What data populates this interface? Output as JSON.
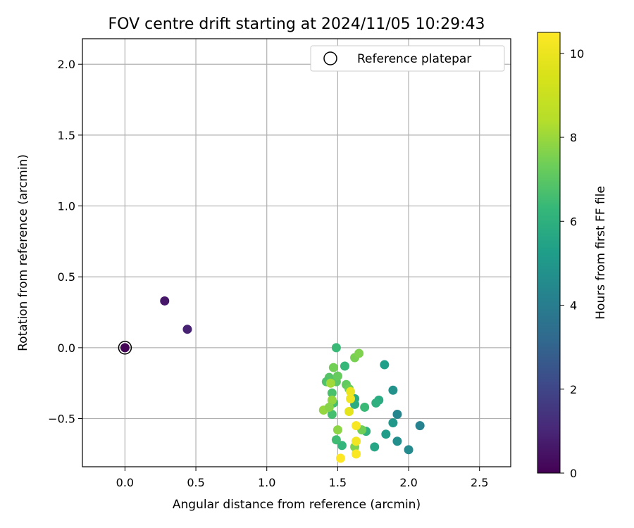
{
  "chart_data": {
    "type": "scatter",
    "title": "FOV centre drift starting at 2024/11/05 10:29:43",
    "xlabel": "Angular distance from reference (arcmin)",
    "ylabel": "Rotation from reference (arcmin)",
    "xlim": [
      -0.3,
      2.72
    ],
    "ylim": [
      -0.84,
      2.18
    ],
    "xticks": [
      0.0,
      0.5,
      1.0,
      1.5,
      2.0,
      2.5
    ],
    "xtick_labels": [
      "0.0",
      "0.5",
      "1.0",
      "1.5",
      "2.0",
      "2.5"
    ],
    "yticks": [
      -0.5,
      0.0,
      0.5,
      1.0,
      1.5,
      2.0
    ],
    "ytick_labels": [
      "−0.5",
      "0.0",
      "0.5",
      "1.0",
      "1.5",
      "2.0"
    ],
    "grid": true,
    "legend": {
      "placement": "top-right",
      "entries": [
        "Reference platepar"
      ]
    },
    "reference_point": {
      "x": 0.0,
      "y": 0.0
    },
    "colorbar": {
      "label": "Hours from first FF file",
      "colormap": "viridis",
      "range": [
        0,
        10.5
      ],
      "ticks": [
        0,
        2,
        4,
        6,
        8,
        10
      ],
      "tick_labels": [
        "0",
        "2",
        "4",
        "6",
        "8",
        "10"
      ]
    },
    "points": [
      {
        "x": 0.0,
        "y": 0.0,
        "c": 0.1
      },
      {
        "x": 0.28,
        "y": 0.33,
        "c": 0.6
      },
      {
        "x": 0.44,
        "y": 0.13,
        "c": 0.9
      },
      {
        "x": 2.08,
        "y": -0.55,
        "c": 4.2
      },
      {
        "x": 2.0,
        "y": -0.72,
        "c": 4.5
      },
      {
        "x": 1.92,
        "y": -0.47,
        "c": 4.4
      },
      {
        "x": 1.92,
        "y": -0.66,
        "c": 4.7
      },
      {
        "x": 1.89,
        "y": -0.3,
        "c": 4.8
      },
      {
        "x": 1.89,
        "y": -0.53,
        "c": 5.0
      },
      {
        "x": 1.84,
        "y": -0.61,
        "c": 5.2
      },
      {
        "x": 1.83,
        "y": -0.12,
        "c": 5.3
      },
      {
        "x": 1.76,
        "y": -0.7,
        "c": 5.6
      },
      {
        "x": 1.79,
        "y": -0.37,
        "c": 5.8
      },
      {
        "x": 1.77,
        "y": -0.39,
        "c": 6.0
      },
      {
        "x": 1.7,
        "y": -0.59,
        "c": 6.1
      },
      {
        "x": 1.62,
        "y": -0.36,
        "c": 5.7
      },
      {
        "x": 1.62,
        "y": -0.4,
        "c": 5.9
      },
      {
        "x": 1.69,
        "y": -0.42,
        "c": 6.4
      },
      {
        "x": 1.55,
        "y": -0.13,
        "c": 6.3
      },
      {
        "x": 1.53,
        "y": -0.69,
        "c": 6.2
      },
      {
        "x": 1.49,
        "y": -0.65,
        "c": 6.5
      },
      {
        "x": 1.49,
        "y": 0.0,
        "c": 6.4
      },
      {
        "x": 1.46,
        "y": -0.47,
        "c": 6.6
      },
      {
        "x": 1.46,
        "y": -0.32,
        "c": 6.7
      },
      {
        "x": 1.47,
        "y": -0.39,
        "c": 6.6
      },
      {
        "x": 1.44,
        "y": -0.21,
        "c": 6.9
      },
      {
        "x": 1.42,
        "y": -0.24,
        "c": 6.8
      },
      {
        "x": 1.49,
        "y": -0.24,
        "c": 7.0
      },
      {
        "x": 1.5,
        "y": -0.2,
        "c": 7.2
      },
      {
        "x": 1.47,
        "y": -0.14,
        "c": 7.4
      },
      {
        "x": 1.56,
        "y": -0.26,
        "c": 7.1
      },
      {
        "x": 1.58,
        "y": -0.29,
        "c": 7.3
      },
      {
        "x": 1.62,
        "y": -0.07,
        "c": 7.5
      },
      {
        "x": 1.65,
        "y": -0.04,
        "c": 7.6
      },
      {
        "x": 1.62,
        "y": -0.7,
        "c": 7.6
      },
      {
        "x": 1.67,
        "y": -0.58,
        "c": 7.4
      },
      {
        "x": 1.5,
        "y": -0.58,
        "c": 7.8
      },
      {
        "x": 1.46,
        "y": -0.37,
        "c": 7.9
      },
      {
        "x": 1.45,
        "y": -0.25,
        "c": 8.1
      },
      {
        "x": 1.4,
        "y": -0.44,
        "c": 7.9
      },
      {
        "x": 1.44,
        "y": -0.42,
        "c": 7.7
      },
      {
        "x": 1.59,
        "y": -0.31,
        "c": 10.0
      },
      {
        "x": 1.59,
        "y": -0.36,
        "c": 10.1
      },
      {
        "x": 1.58,
        "y": -0.45,
        "c": 9.8
      },
      {
        "x": 1.63,
        "y": -0.55,
        "c": 10.3
      },
      {
        "x": 1.63,
        "y": -0.66,
        "c": 10.2
      },
      {
        "x": 1.63,
        "y": -0.75,
        "c": 10.4
      },
      {
        "x": 1.52,
        "y": -0.78,
        "c": 10.5
      }
    ]
  },
  "colors": {
    "axis": "#000000",
    "grid": "#b0b0b0",
    "legend_border": "#cccccc"
  }
}
